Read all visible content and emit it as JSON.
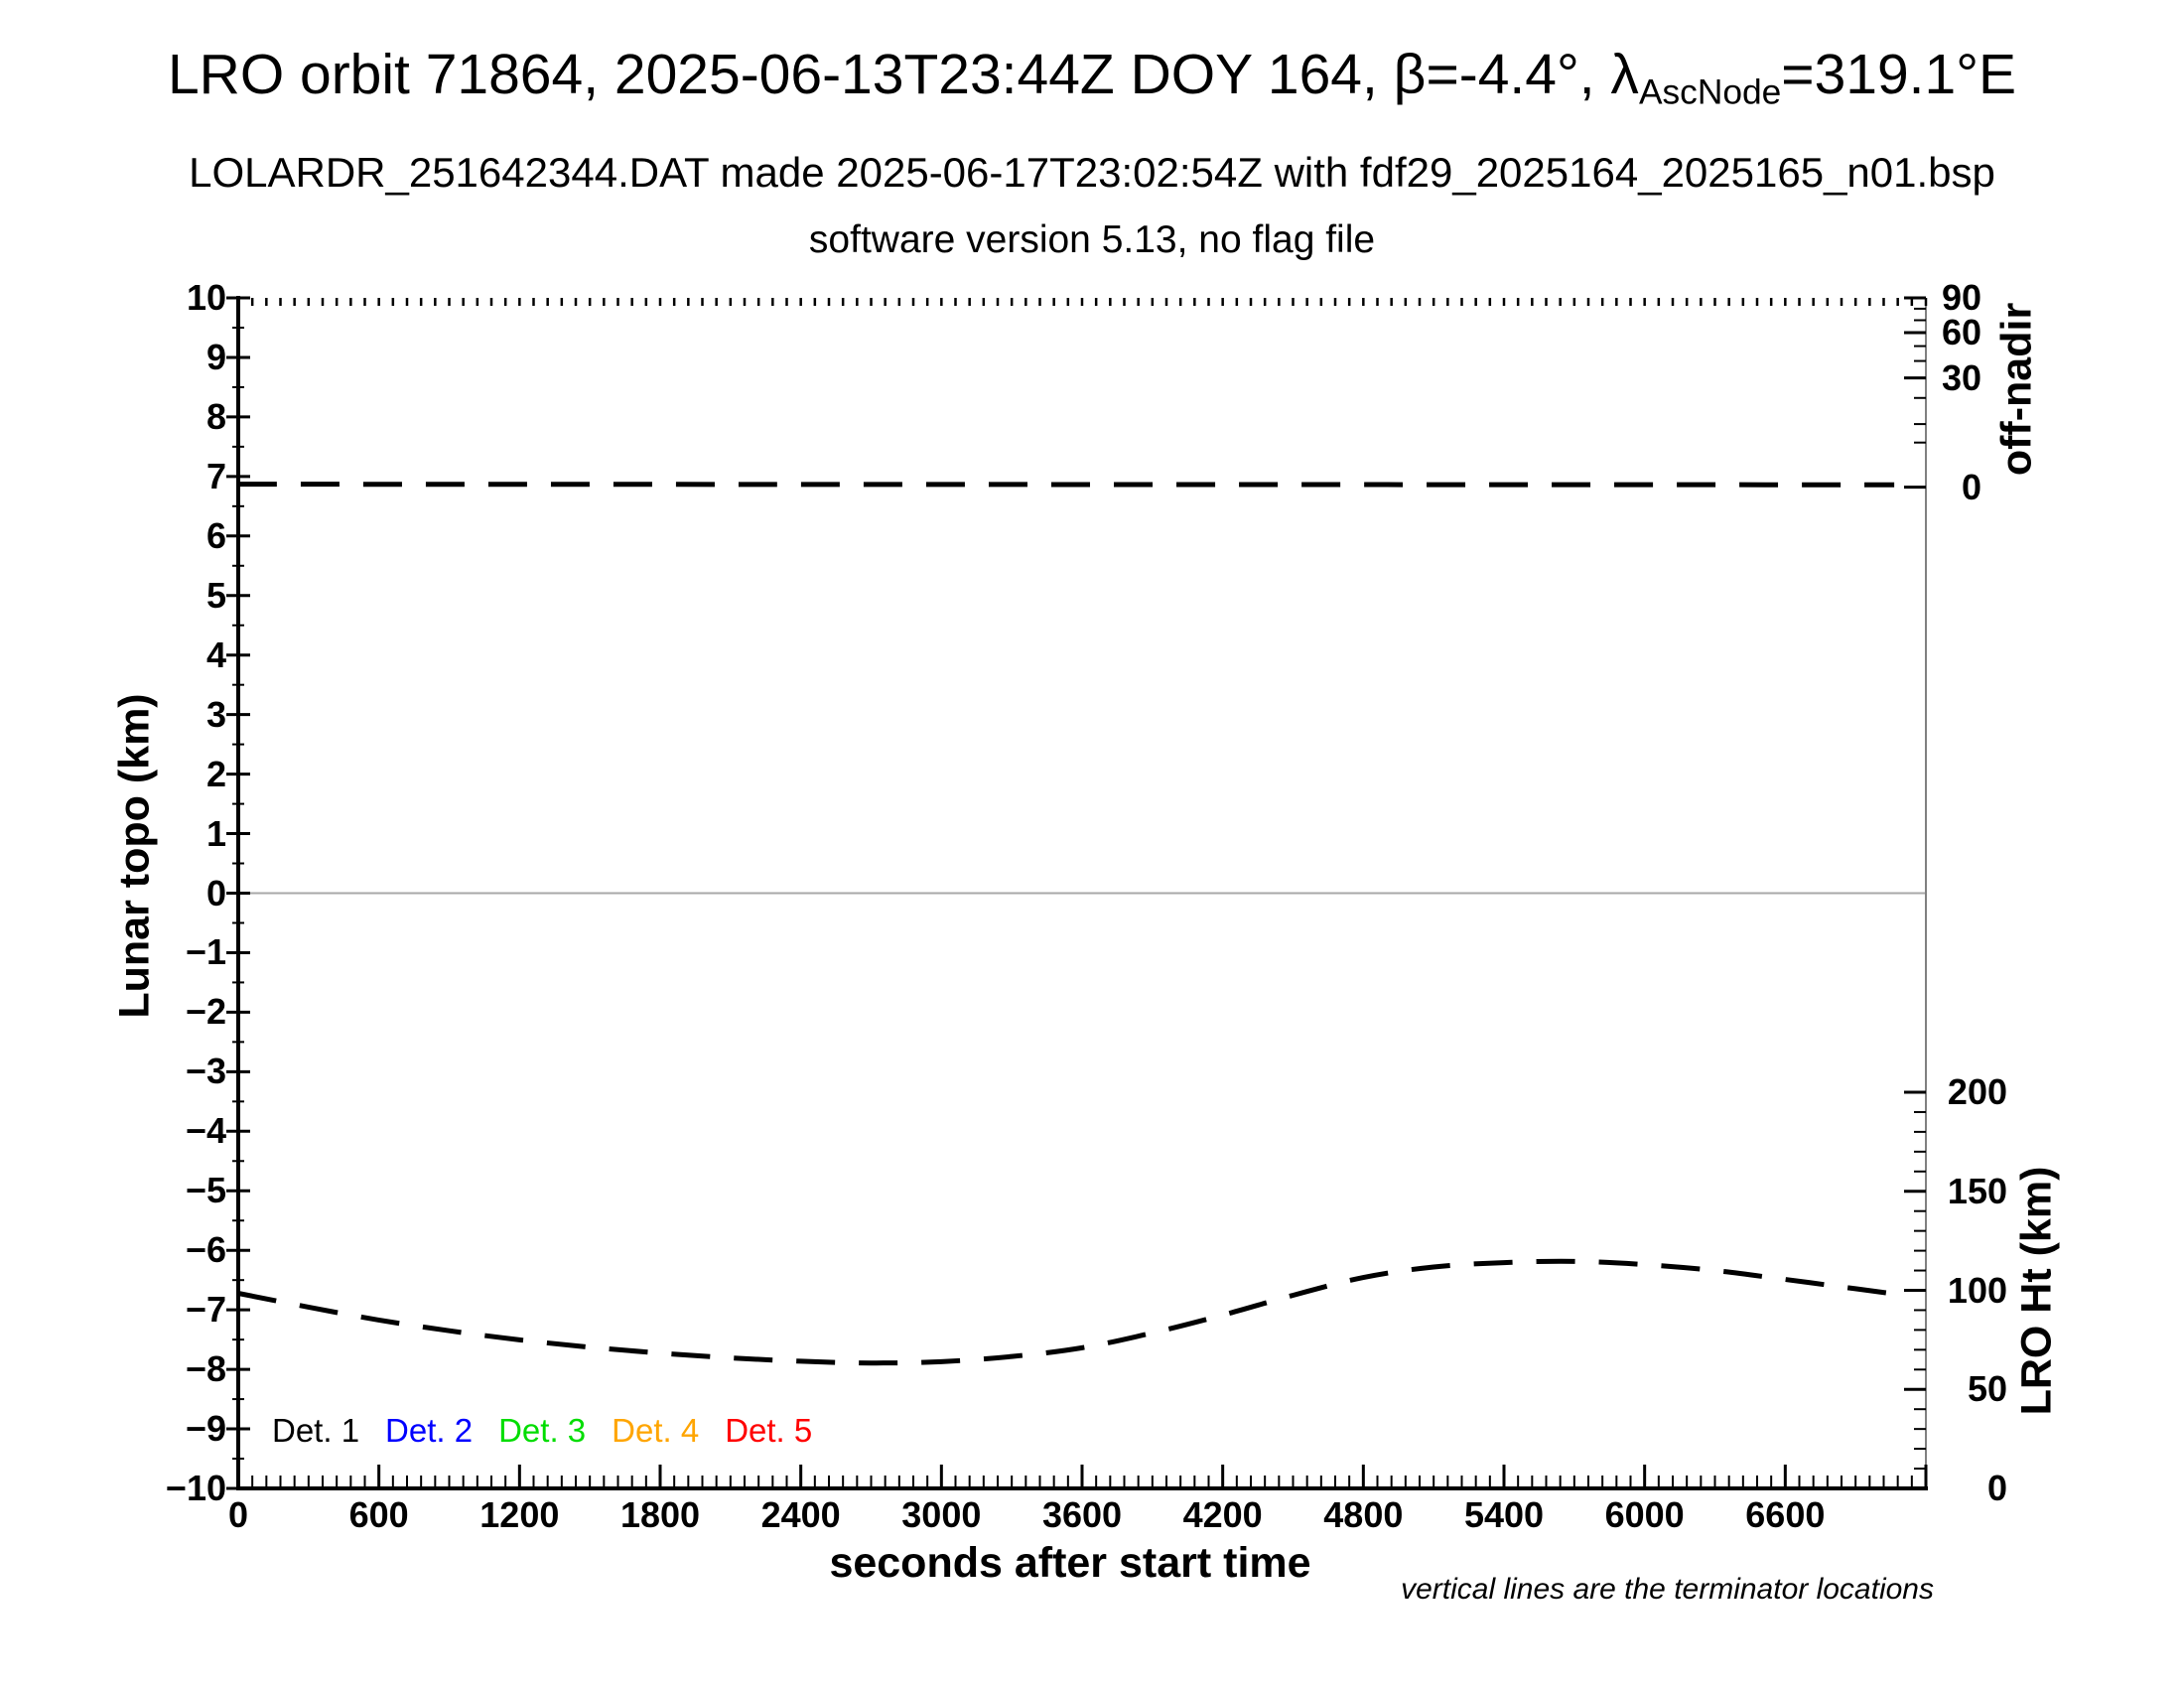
{
  "header": {
    "title_prefix": "LRO orbit 71864, 2025-06-13T23:44Z DOY 164, β=-4.4°, λ",
    "title_subscript": "AscNode",
    "title_suffix": "=319.1°E",
    "subtitle": "LOLARDR_251642344.DAT made 2025-06-17T23:02:54Z with fdf29_2025164_2025165_n01.bsp",
    "subtitle2": "software version 5.13, no flag file"
  },
  "footnote": "vertical lines are the terminator locations",
  "legend": {
    "items": [
      {
        "label": "Det. 1",
        "color": "#000000"
      },
      {
        "label": "Det. 2",
        "color": "#0000ff"
      },
      {
        "label": "Det. 3",
        "color": "#00dd00"
      },
      {
        "label": "Det. 4",
        "color": "#ffa500"
      },
      {
        "label": "Det. 5",
        "color": "#ff0000"
      }
    ]
  },
  "colors": {
    "curve": "#000000",
    "right_axis_line": "#808080",
    "zero_line": "#a8a8a8",
    "background": "#ffffff"
  },
  "chart_data": {
    "type": "line",
    "title": "LRO orbit 71864, 2025-06-13T23:44Z DOY 164, β=-4.4°, λ_AscNode=319.1°E",
    "xlabel": "seconds after start time",
    "xlim": [
      0,
      7200
    ],
    "x_major_step": 600,
    "x_minor_step": 60,
    "x_tick_labels": [
      0,
      600,
      1200,
      1800,
      2400,
      3000,
      3600,
      4200,
      4800,
      5400,
      6000,
      6600
    ],
    "grid": false,
    "left_axis": {
      "label": "Lunar topo (km)",
      "lim": [
        -10,
        10
      ],
      "tick_labels": [
        10,
        9,
        8,
        7,
        6,
        5,
        4,
        3,
        2,
        1,
        0,
        -1,
        -2,
        -3,
        -4,
        -5,
        -6,
        -7,
        -8,
        -9,
        -10
      ],
      "minor_step": 0.5,
      "zero_line_at": 0
    },
    "offnadir_axis": {
      "label": "off-nadir",
      "tick_labels": [
        90,
        60,
        30,
        0
      ],
      "minor_ticks": [
        80,
        70,
        50,
        40,
        20,
        10,
        5
      ],
      "scale": "nonlinear, 0 deg aligns with left-axis 6.82, 90 deg at left-axis 10"
    },
    "lroht_axis": {
      "label": "LRO Ht (km)",
      "tick_labels": [
        200,
        150,
        100,
        50,
        0
      ],
      "minor_step_km": 10,
      "zero_at_plot_bottom": true
    },
    "series": [
      {
        "name": "off-nadir angle",
        "color": "#000000",
        "line": "dashed",
        "axis": "left",
        "points": [
          [
            0,
            6.87
          ],
          [
            7065,
            6.86
          ]
        ]
      },
      {
        "name": "LRO height",
        "color": "#000000",
        "line": "dashed",
        "axis": "lroht_km",
        "points": [
          [
            0,
            98.5
          ],
          [
            300,
            91.5
          ],
          [
            600,
            85.0
          ],
          [
            900,
            79.6
          ],
          [
            1200,
            75.0
          ],
          [
            1500,
            71.3
          ],
          [
            1800,
            68.3
          ],
          [
            2100,
            65.9
          ],
          [
            2400,
            64.2
          ],
          [
            2700,
            63.3
          ],
          [
            3000,
            64.0
          ],
          [
            3300,
            66.6
          ],
          [
            3600,
            71.0
          ],
          [
            3900,
            78.5
          ],
          [
            4200,
            87.5
          ],
          [
            4500,
            97.5
          ],
          [
            4800,
            106.5
          ],
          [
            5100,
            111.8
          ],
          [
            5400,
            114.0
          ],
          [
            5700,
            114.6
          ],
          [
            6000,
            113.0
          ],
          [
            6300,
            110.0
          ],
          [
            6600,
            105.5
          ],
          [
            6900,
            100.8
          ],
          [
            7065,
            98.2
          ]
        ]
      }
    ]
  }
}
